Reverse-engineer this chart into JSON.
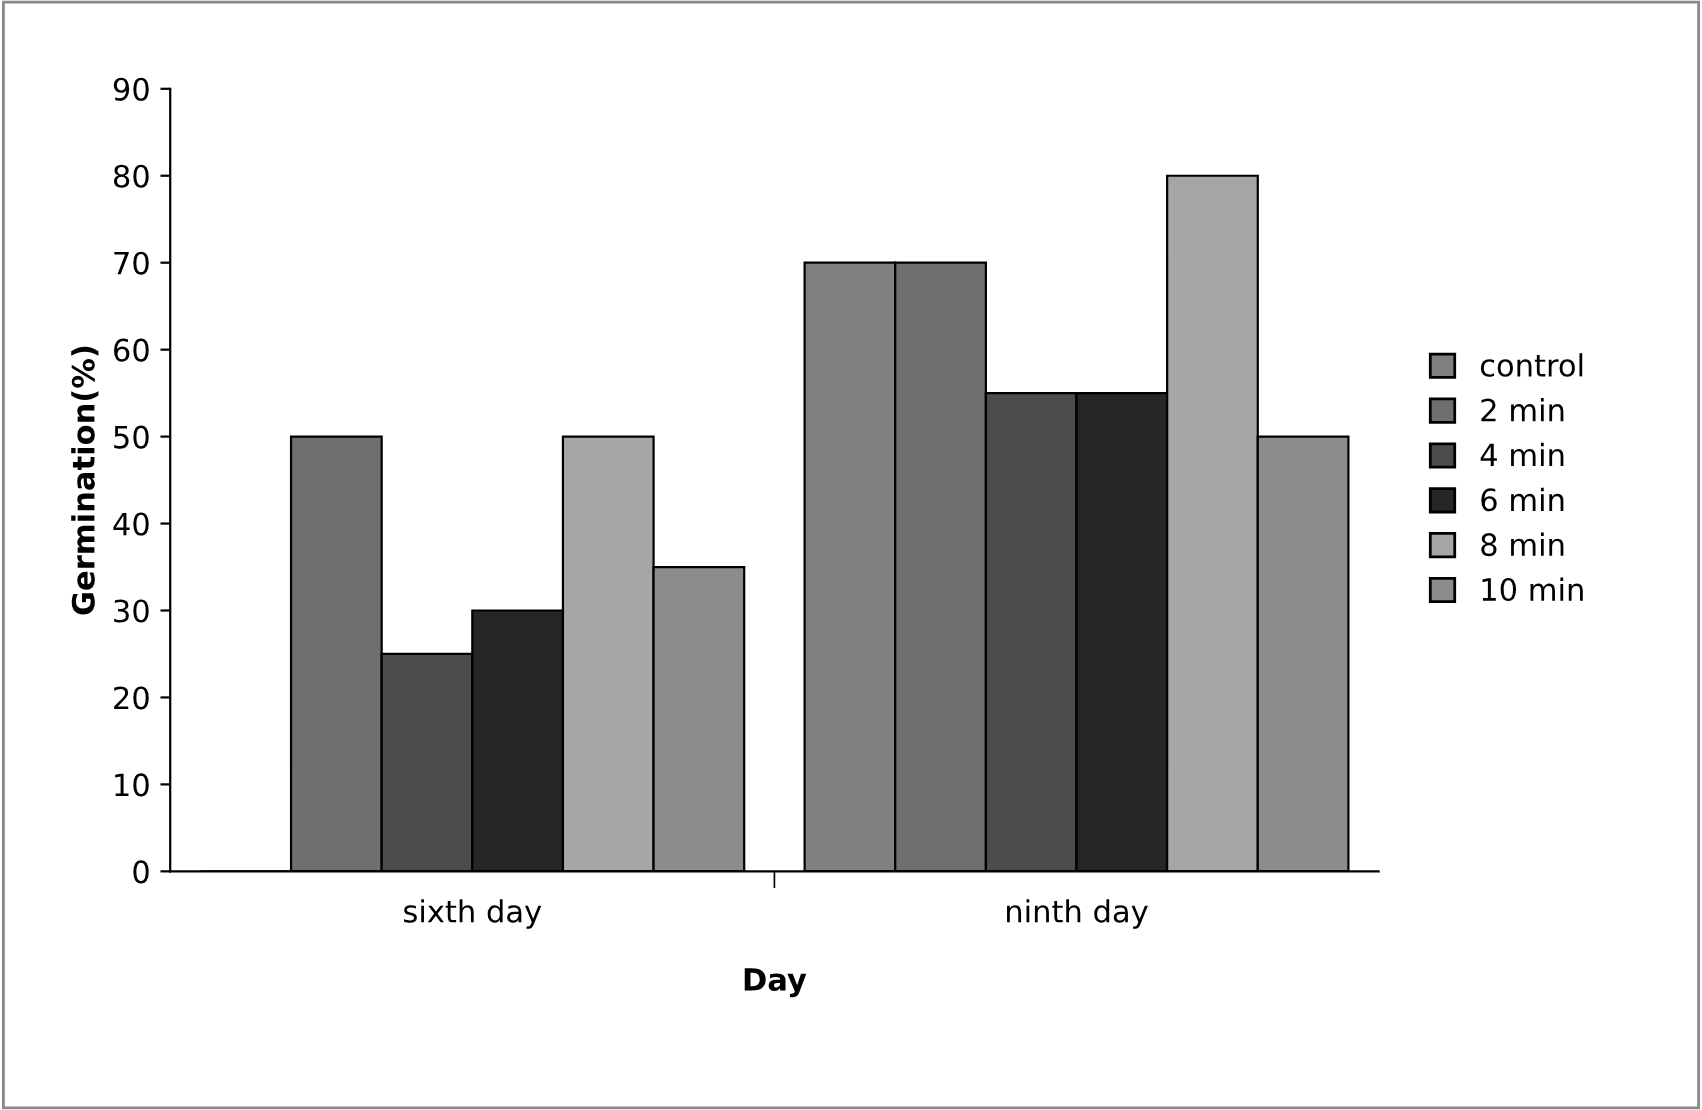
{
  "chart_data": {
    "type": "bar",
    "xlabel": "Day",
    "ylabel": "Germination(%)",
    "categories": [
      "sixth day",
      "ninth day"
    ],
    "series": [
      {
        "name": "control",
        "color": "#808080",
        "values": [
          0,
          70
        ]
      },
      {
        "name": "2 min",
        "color": "#6f6f6f",
        "values": [
          50,
          70
        ]
      },
      {
        "name": "4 min",
        "color": "#4c4c4c",
        "values": [
          25,
          55
        ]
      },
      {
        "name": "6 min",
        "color": "#262626",
        "values": [
          30,
          55
        ]
      },
      {
        "name": "8 min",
        "color": "#a6a6a6",
        "values": [
          50,
          80
        ]
      },
      {
        "name": "10 min",
        "color": "#8c8c8c",
        "values": [
          35,
          50
        ]
      }
    ],
    "ylim": [
      0,
      90
    ],
    "yticks": [
      0,
      10,
      20,
      30,
      40,
      50,
      60,
      70,
      80,
      90
    ],
    "grid": false,
    "legend": "right"
  }
}
